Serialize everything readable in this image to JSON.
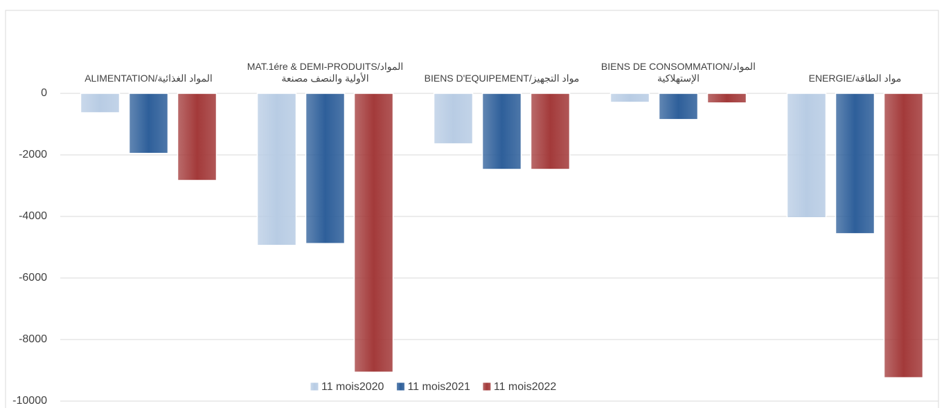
{
  "chart_data": {
    "type": "bar",
    "categories": [
      "ALIMENTATION/المواد الغذائية",
      "MAT.1ére & DEMI-PRODUITS/المواد الأولية والنصف مصنعة",
      "BIENS D'EQUIPEMENT/مواد التجهيز",
      "BIENS DE CONSOMMATION/المواد الإستهلاكية",
      "ENERGIE/مواد الطاقة"
    ],
    "series": [
      {
        "name": "11 mois2020",
        "color": "#b8cce4",
        "values": [
          -630,
          -4940,
          -1640,
          -290,
          -4040
        ]
      },
      {
        "name": "11 mois2021",
        "color": "#2e5f9a",
        "values": [
          -1950,
          -4880,
          -2470,
          -850,
          -4560
        ]
      },
      {
        "name": "11 mois2022",
        "color": "#a33a3a",
        "values": [
          -2830,
          -9060,
          -2470,
          -310,
          -9240
        ]
      }
    ],
    "ylim": [
      -10000,
      0
    ],
    "yticks": [
      0,
      -2000,
      -4000,
      -6000,
      -8000,
      -10000
    ],
    "grid": true,
    "legend": "bottom"
  }
}
